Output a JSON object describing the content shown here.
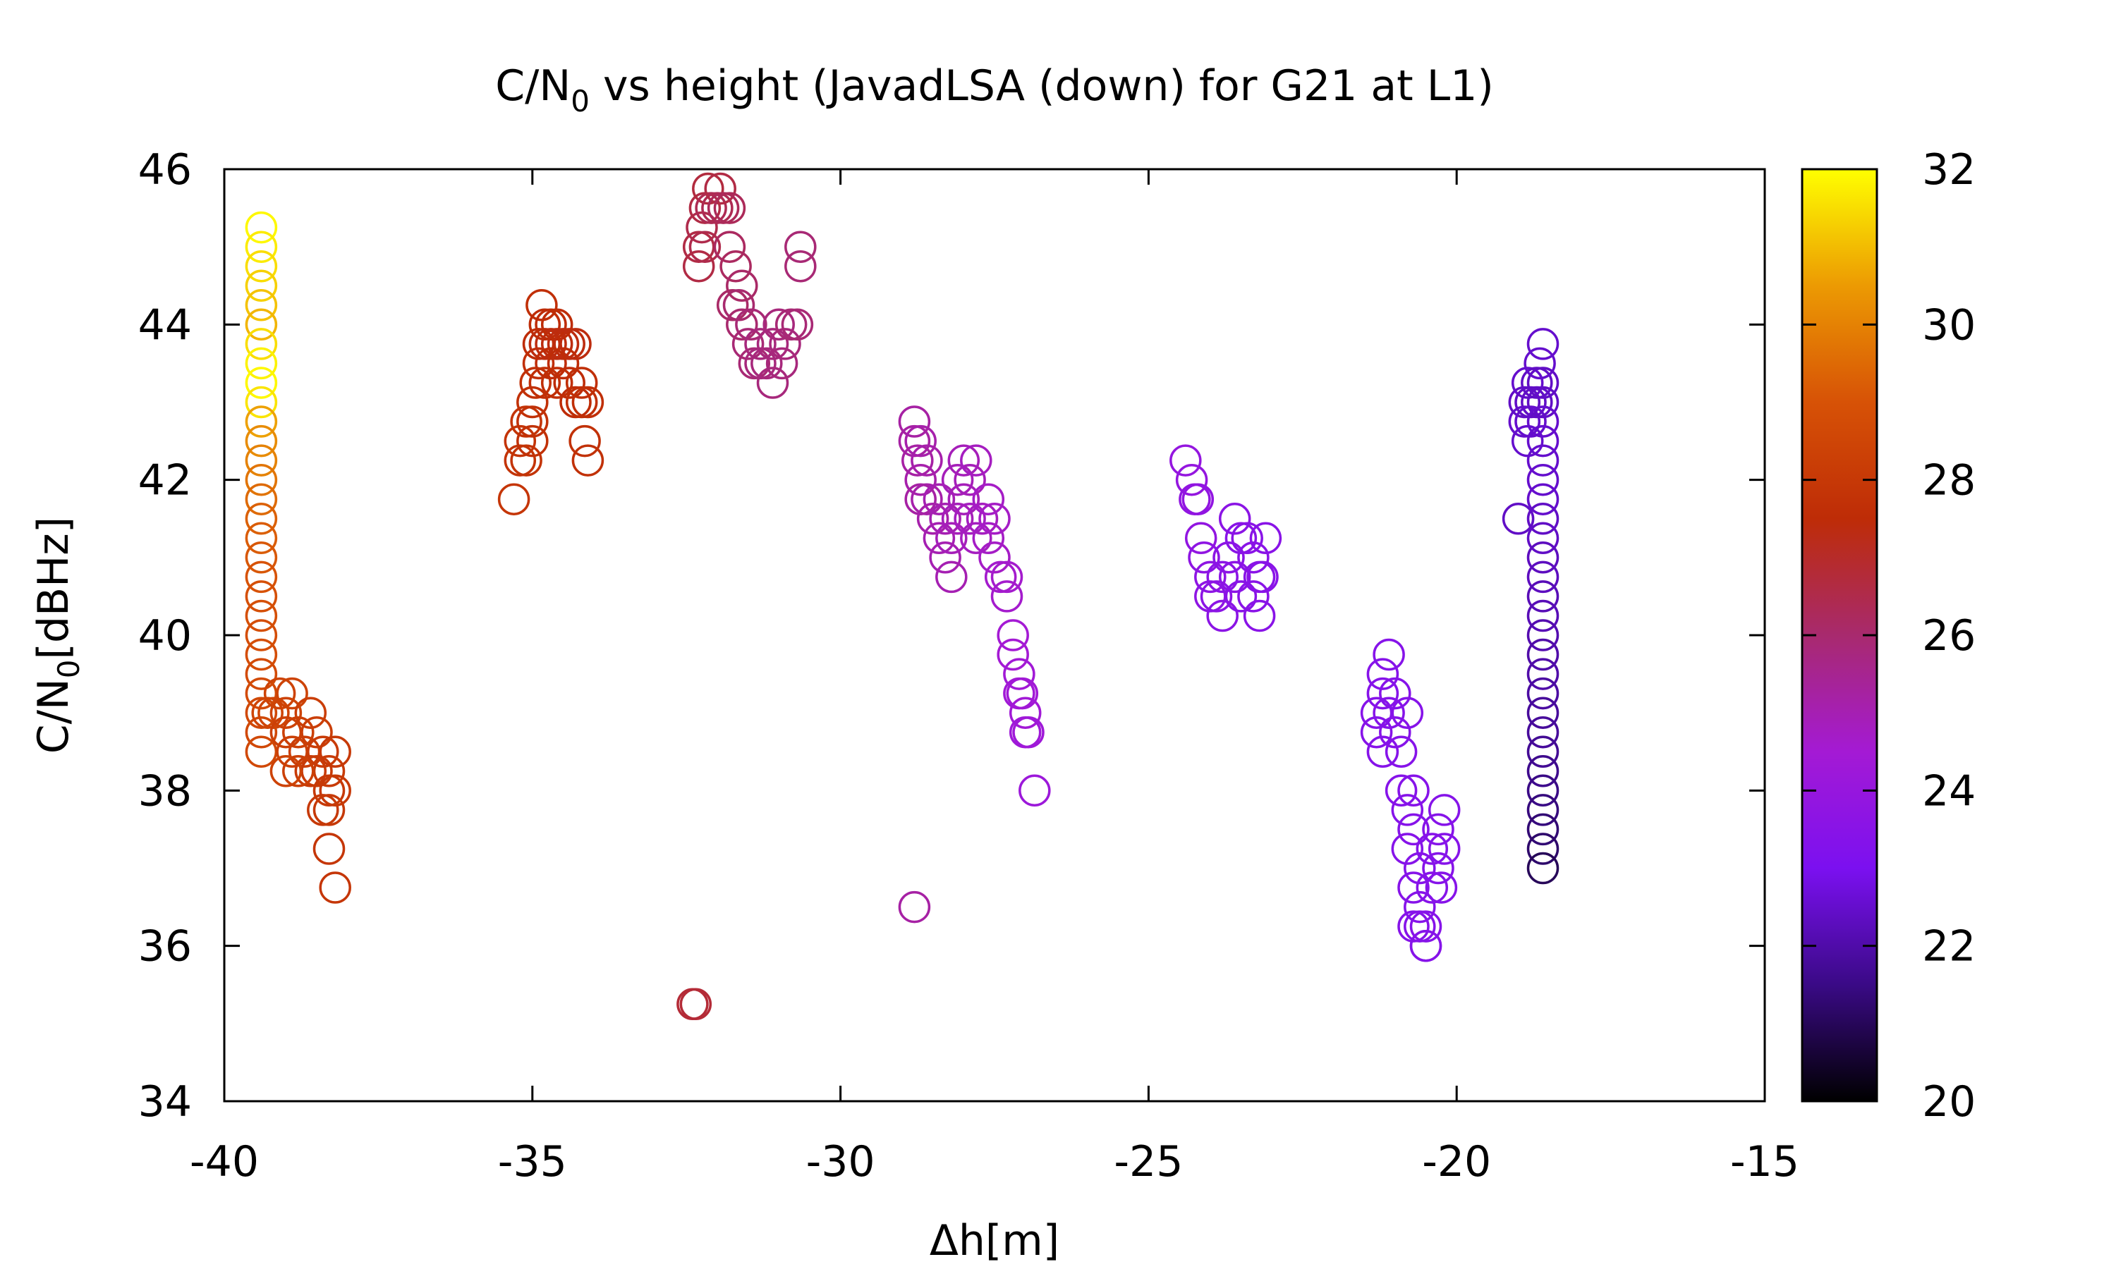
{
  "chart_data": {
    "type": "scatter",
    "title": {
      "main": "C/N",
      "sub": "0",
      "rest": " vs height (JavadLSA (down) for G21 at L1)"
    },
    "xlabel": "Δh[m]",
    "ylabel": {
      "main": "C/N",
      "sub": "0",
      "rest": "[dBHz]"
    },
    "xlim": [
      -40,
      -15
    ],
    "ylim": [
      34,
      46
    ],
    "xticks": [
      -40,
      -35,
      -30,
      -25,
      -20,
      -15
    ],
    "yticks": [
      34,
      36,
      38,
      40,
      42,
      44,
      46
    ],
    "colorbar": {
      "range": [
        20,
        32
      ],
      "ticks": [
        20,
        22,
        24,
        26,
        28,
        30,
        32
      ],
      "colormap": "gnuplot-rgbformulae-7-5-15",
      "stops": [
        "#000000",
        "#3a0a86",
        "#7b10f0",
        "#a41ad4",
        "#a82a6e",
        "#be2c07",
        "#d75206",
        "#ec9a03",
        "#ffff00"
      ]
    },
    "marker": "open-circle",
    "grid": false,
    "points": [
      [
        -39.4,
        45.25,
        31.9
      ],
      [
        -39.4,
        45.0,
        31.7
      ],
      [
        -39.4,
        44.75,
        31.5
      ],
      [
        -39.4,
        44.5,
        31.3
      ],
      [
        -39.4,
        44.25,
        31.1
      ],
      [
        -39.4,
        44.0,
        30.9
      ],
      [
        -39.4,
        43.75,
        31.5
      ],
      [
        -39.4,
        43.5,
        31.8
      ],
      [
        -39.4,
        43.25,
        31.9
      ],
      [
        -39.4,
        43.0,
        31.6
      ],
      [
        -39.4,
        42.75,
        30.6
      ],
      [
        -39.4,
        42.5,
        30.2
      ],
      [
        -39.4,
        42.25,
        30.0
      ],
      [
        -39.4,
        42.0,
        29.7
      ],
      [
        -39.4,
        41.75,
        29.5
      ],
      [
        -39.4,
        41.5,
        29.3
      ],
      [
        -39.4,
        41.25,
        29.2
      ],
      [
        -39.4,
        41.0,
        29.1
      ],
      [
        -39.4,
        40.75,
        29.0
      ],
      [
        -39.4,
        40.5,
        28.9
      ],
      [
        -39.4,
        40.25,
        28.9
      ],
      [
        -39.4,
        40.0,
        28.8
      ],
      [
        -39.4,
        39.75,
        28.8
      ],
      [
        -39.4,
        39.5,
        28.7
      ],
      [
        -39.4,
        39.25,
        28.7
      ],
      [
        -39.4,
        39.0,
        28.6
      ],
      [
        -39.4,
        38.75,
        28.6
      ],
      [
        -39.4,
        38.5,
        28.6
      ],
      [
        -39.3,
        39.0,
        28.5
      ],
      [
        -39.2,
        39.0,
        28.5
      ],
      [
        -39.1,
        39.25,
        28.4
      ],
      [
        -39.0,
        39.0,
        28.4
      ],
      [
        -38.9,
        39.25,
        28.4
      ],
      [
        -39.0,
        38.75,
        28.3
      ],
      [
        -38.9,
        38.5,
        28.3
      ],
      [
        -38.8,
        38.75,
        28.3
      ],
      [
        -38.7,
        38.5,
        28.2
      ],
      [
        -38.6,
        39.0,
        28.2
      ],
      [
        -38.5,
        38.75,
        28.2
      ],
      [
        -38.6,
        38.25,
        28.1
      ],
      [
        -38.4,
        38.5,
        28.1
      ],
      [
        -38.3,
        38.25,
        28.1
      ],
      [
        -38.5,
        38.25,
        28.1
      ],
      [
        -38.2,
        38.5,
        28.0
      ],
      [
        -38.3,
        38.0,
        28.0
      ],
      [
        -38.4,
        37.75,
        28.0
      ],
      [
        -38.3,
        37.75,
        28.0
      ],
      [
        -38.2,
        38.0,
        28.0
      ],
      [
        -38.3,
        37.25,
        27.9
      ],
      [
        -38.2,
        36.75,
        27.9
      ],
      [
        -39.0,
        38.25,
        28.4
      ],
      [
        -38.8,
        38.25,
        28.3
      ],
      [
        -35.3,
        41.75,
        27.9
      ],
      [
        -35.2,
        42.25,
        27.8
      ],
      [
        -35.2,
        42.5,
        27.8
      ],
      [
        -35.1,
        42.25,
        27.8
      ],
      [
        -35.1,
        42.75,
        27.8
      ],
      [
        -35.0,
        42.5,
        27.7
      ],
      [
        -35.0,
        42.75,
        27.7
      ],
      [
        -35.0,
        43.0,
        27.7
      ],
      [
        -34.95,
        43.25,
        27.7
      ],
      [
        -34.9,
        43.5,
        27.6
      ],
      [
        -34.9,
        43.75,
        27.5
      ],
      [
        -34.85,
        44.25,
        27.6
      ],
      [
        -34.8,
        44.0,
        27.5
      ],
      [
        -34.8,
        43.75,
        27.4
      ],
      [
        -34.7,
        43.75,
        27.4
      ],
      [
        -34.7,
        44.0,
        27.5
      ],
      [
        -34.6,
        43.75,
        27.4
      ],
      [
        -34.6,
        44.0,
        27.5
      ],
      [
        -34.5,
        43.75,
        27.4
      ],
      [
        -34.5,
        43.5,
        27.5
      ],
      [
        -34.4,
        43.75,
        27.4
      ],
      [
        -34.3,
        43.75,
        27.4
      ],
      [
        -34.4,
        43.25,
        27.5
      ],
      [
        -34.3,
        43.0,
        27.5
      ],
      [
        -34.2,
        43.25,
        27.6
      ],
      [
        -34.2,
        43.0,
        27.6
      ],
      [
        -34.1,
        43.0,
        27.6
      ],
      [
        -34.15,
        42.5,
        27.7
      ],
      [
        -34.1,
        42.25,
        27.7
      ],
      [
        -34.8,
        43.25,
        27.6
      ],
      [
        -34.7,
        43.5,
        27.5
      ],
      [
        -34.6,
        43.25,
        27.6
      ],
      [
        -32.3,
        45.0,
        26.6
      ],
      [
        -32.25,
        45.25,
        26.5
      ],
      [
        -32.2,
        45.0,
        26.5
      ],
      [
        -32.2,
        45.5,
        26.6
      ],
      [
        -32.15,
        45.75,
        26.7
      ],
      [
        -32.1,
        45.5,
        26.4
      ],
      [
        -32.0,
        45.5,
        26.4
      ],
      [
        -31.95,
        45.75,
        26.6
      ],
      [
        -31.9,
        45.5,
        26.3
      ],
      [
        -31.8,
        45.5,
        26.3
      ],
      [
        -31.8,
        45.0,
        26.2
      ],
      [
        -31.7,
        44.75,
        26.2
      ],
      [
        -31.75,
        44.25,
        26.1
      ],
      [
        -31.65,
        44.25,
        26.0
      ],
      [
        -31.6,
        44.0,
        26.0
      ],
      [
        -31.6,
        44.5,
        26.1
      ],
      [
        -31.5,
        43.75,
        25.9
      ],
      [
        -31.45,
        44.0,
        25.9
      ],
      [
        -31.4,
        43.5,
        25.9
      ],
      [
        -31.3,
        43.75,
        25.8
      ],
      [
        -31.3,
        43.5,
        25.8
      ],
      [
        -31.2,
        43.5,
        25.8
      ],
      [
        -31.1,
        43.25,
        25.8
      ],
      [
        -31.1,
        43.75,
        25.8
      ],
      [
        -31.0,
        44.0,
        25.8
      ],
      [
        -30.95,
        43.5,
        25.8
      ],
      [
        -30.9,
        43.75,
        25.8
      ],
      [
        -30.8,
        44.0,
        25.9
      ],
      [
        -30.7,
        44.0,
        25.9
      ],
      [
        -30.65,
        45.0,
        25.9
      ],
      [
        -30.65,
        44.75,
        25.9
      ],
      [
        -32.3,
        44.75,
        26.6
      ],
      [
        -32.4,
        35.25,
        26.8
      ],
      [
        -32.35,
        35.25,
        26.8
      ],
      [
        -28.8,
        36.5,
        25.2
      ],
      [
        -28.8,
        42.75,
        25.2
      ],
      [
        -28.8,
        42.5,
        25.2
      ],
      [
        -28.7,
        42.5,
        25.1
      ],
      [
        -28.75,
        42.25,
        25.2
      ],
      [
        -28.7,
        42.0,
        25.1
      ],
      [
        -28.6,
        41.75,
        25.1
      ],
      [
        -28.7,
        41.75,
        25.2
      ],
      [
        -28.6,
        42.25,
        25.1
      ],
      [
        -28.5,
        41.5,
        25.1
      ],
      [
        -28.4,
        41.75,
        25.0
      ],
      [
        -28.4,
        41.25,
        25.0
      ],
      [
        -28.3,
        41.5,
        25.0
      ],
      [
        -28.3,
        41.0,
        25.0
      ],
      [
        -28.2,
        40.75,
        25.0
      ],
      [
        -28.2,
        41.25,
        24.9
      ],
      [
        -28.1,
        41.5,
        24.9
      ],
      [
        -28.1,
        42.0,
        24.9
      ],
      [
        -28.0,
        42.25,
        24.9
      ],
      [
        -28.0,
        41.75,
        24.9
      ],
      [
        -27.9,
        42.0,
        24.9
      ],
      [
        -27.8,
        42.25,
        24.8
      ],
      [
        -27.9,
        41.5,
        24.8
      ],
      [
        -27.8,
        41.25,
        24.8
      ],
      [
        -27.7,
        41.5,
        24.8
      ],
      [
        -27.6,
        41.75,
        24.7
      ],
      [
        -27.6,
        41.25,
        24.7
      ],
      [
        -27.5,
        41.0,
        24.7
      ],
      [
        -27.5,
        41.5,
        24.7
      ],
      [
        -27.4,
        40.75,
        24.6
      ],
      [
        -27.3,
        40.75,
        24.6
      ],
      [
        -27.3,
        40.5,
        24.6
      ],
      [
        -27.2,
        40.0,
        24.5
      ],
      [
        -27.2,
        39.75,
        24.5
      ],
      [
        -27.1,
        39.5,
        24.4
      ],
      [
        -27.1,
        39.25,
        24.4
      ],
      [
        -27.0,
        39.0,
        24.4
      ],
      [
        -27.0,
        38.75,
        24.3
      ],
      [
        -26.95,
        38.75,
        24.3
      ],
      [
        -26.85,
        38.0,
        24.2
      ],
      [
        -27.05,
        39.25,
        24.4
      ],
      [
        -24.4,
        42.25,
        23.9
      ],
      [
        -24.3,
        42.0,
        23.9
      ],
      [
        -24.25,
        41.75,
        23.8
      ],
      [
        -24.2,
        41.75,
        23.8
      ],
      [
        -24.15,
        41.25,
        23.8
      ],
      [
        -24.1,
        41.0,
        23.7
      ],
      [
        -24.0,
        40.75,
        23.7
      ],
      [
        -24.0,
        40.5,
        23.7
      ],
      [
        -23.9,
        40.5,
        23.6
      ],
      [
        -23.8,
        40.25,
        23.6
      ],
      [
        -23.8,
        40.75,
        23.6
      ],
      [
        -23.7,
        41.0,
        23.6
      ],
      [
        -23.6,
        41.5,
        23.6
      ],
      [
        -23.6,
        40.75,
        23.6
      ],
      [
        -23.5,
        40.5,
        23.5
      ],
      [
        -23.5,
        41.25,
        23.5
      ],
      [
        -23.4,
        41.25,
        23.5
      ],
      [
        -23.3,
        41.0,
        23.5
      ],
      [
        -23.3,
        40.5,
        23.5
      ],
      [
        -23.2,
        40.75,
        23.5
      ],
      [
        -23.2,
        40.25,
        23.5
      ],
      [
        -23.1,
        41.25,
        23.5
      ],
      [
        -23.15,
        40.75,
        23.5
      ],
      [
        -21.1,
        39.75,
        23.4
      ],
      [
        -21.2,
        39.5,
        23.4
      ],
      [
        -21.2,
        39.25,
        23.4
      ],
      [
        -21.3,
        39.0,
        23.4
      ],
      [
        -21.3,
        38.75,
        23.4
      ],
      [
        -21.2,
        38.5,
        23.4
      ],
      [
        -21.1,
        39.0,
        23.4
      ],
      [
        -21.0,
        39.25,
        23.4
      ],
      [
        -21.0,
        38.75,
        23.4
      ],
      [
        -20.9,
        38.5,
        23.4
      ],
      [
        -20.8,
        39.0,
        23.4
      ],
      [
        -20.9,
        38.0,
        23.4
      ],
      [
        -20.8,
        37.75,
        23.4
      ],
      [
        -20.8,
        37.25,
        23.4
      ],
      [
        -20.7,
        38.0,
        23.4
      ],
      [
        -20.7,
        37.5,
        23.4
      ],
      [
        -20.7,
        36.75,
        23.4
      ],
      [
        -20.6,
        37.0,
        23.4
      ],
      [
        -20.6,
        36.5,
        23.4
      ],
      [
        -20.6,
        36.25,
        23.4
      ],
      [
        -20.5,
        36.0,
        23.4
      ],
      [
        -20.5,
        36.25,
        23.4
      ],
      [
        -20.4,
        36.75,
        23.4
      ],
      [
        -20.4,
        37.25,
        23.4
      ],
      [
        -20.3,
        37.0,
        23.4
      ],
      [
        -20.3,
        37.5,
        23.4
      ],
      [
        -20.2,
        37.75,
        23.4
      ],
      [
        -20.2,
        37.25,
        23.4
      ],
      [
        -20.25,
        36.75,
        23.4
      ],
      [
        -20.5,
        36.0,
        23.4
      ],
      [
        -20.7,
        36.25,
        23.4
      ],
      [
        -19.0,
        41.5,
        22.4
      ],
      [
        -18.9,
        42.75,
        22.5
      ],
      [
        -18.9,
        43.0,
        22.4
      ],
      [
        -18.85,
        43.25,
        22.5
      ],
      [
        -18.85,
        42.5,
        22.5
      ],
      [
        -18.8,
        42.75,
        22.5
      ],
      [
        -18.8,
        43.0,
        22.4
      ],
      [
        -18.7,
        43.25,
        22.4
      ],
      [
        -18.7,
        43.0,
        22.4
      ],
      [
        -18.65,
        43.5,
        22.5
      ],
      [
        -18.6,
        43.75,
        22.5
      ],
      [
        -18.6,
        43.25,
        22.4
      ],
      [
        -18.6,
        43.0,
        22.4
      ],
      [
        -18.6,
        42.75,
        22.5
      ],
      [
        -18.6,
        42.5,
        22.5
      ],
      [
        -18.6,
        42.25,
        22.5
      ],
      [
        -18.6,
        42.0,
        22.5
      ],
      [
        -18.6,
        41.75,
        22.5
      ],
      [
        -18.6,
        41.5,
        22.4
      ],
      [
        -18.6,
        41.25,
        22.4
      ],
      [
        -18.6,
        41.0,
        22.3
      ],
      [
        -18.6,
        40.75,
        22.3
      ],
      [
        -18.6,
        40.5,
        22.2
      ],
      [
        -18.6,
        40.25,
        22.2
      ],
      [
        -18.6,
        40.0,
        22.1
      ],
      [
        -18.6,
        39.75,
        22.0
      ],
      [
        -18.6,
        39.5,
        22.0
      ],
      [
        -18.6,
        39.25,
        21.9
      ],
      [
        -18.6,
        39.0,
        21.8
      ],
      [
        -18.6,
        38.75,
        21.8
      ],
      [
        -18.6,
        38.5,
        21.7
      ],
      [
        -18.6,
        38.25,
        21.6
      ],
      [
        -18.6,
        38.0,
        21.5
      ],
      [
        -18.6,
        37.75,
        21.4
      ],
      [
        -18.6,
        37.5,
        21.3
      ],
      [
        -18.6,
        37.25,
        21.2
      ],
      [
        -18.6,
        37.0,
        21.0
      ]
    ]
  }
}
